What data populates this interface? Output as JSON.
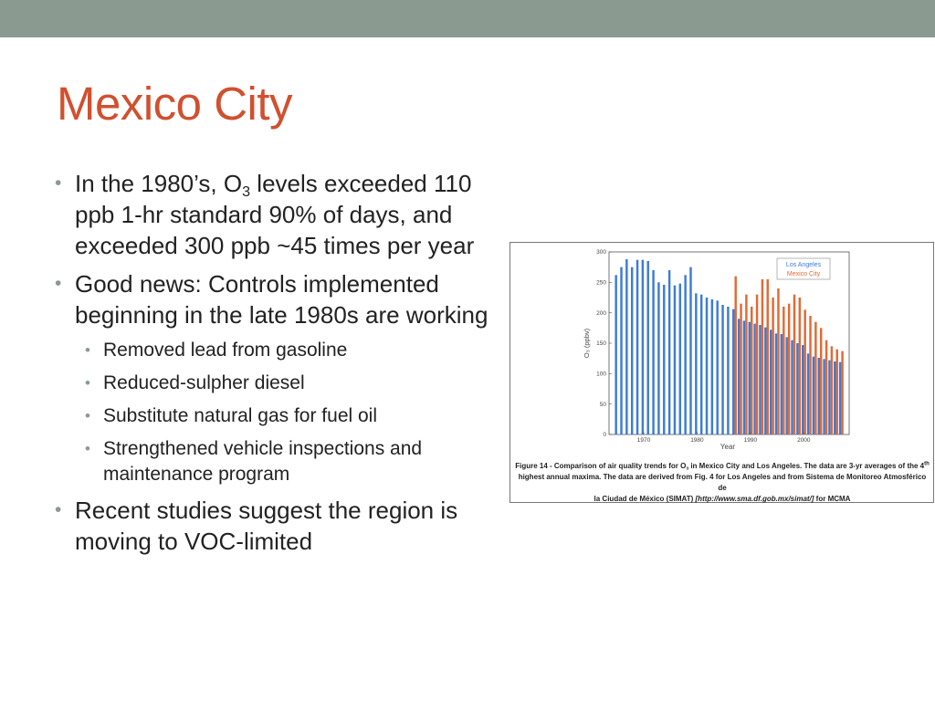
{
  "slide": {
    "title": "Mexico City",
    "bullets": [
      {
        "pre": "In the 1980’s, O",
        "sub": "3",
        "post": " levels exceeded 110 ppb 1-hr standard 90% of days, and exceeded 300 ppb ~45 times per year"
      },
      {
        "text": "Good news: Controls implemented beginning in the late 1980s are working"
      },
      {
        "text": "Removed lead from gasoline"
      },
      {
        "text": "Reduced-sulpher diesel"
      },
      {
        "text": "Substitute natural gas for fuel oil"
      },
      {
        "text": "Strengthened vehicle inspections and maintenance program"
      },
      {
        "text": "Recent studies suggest the region is moving to VOC-limited"
      }
    ]
  },
  "figure": {
    "caption": {
      "line1_a": "Figure 14 - Comparison of air quality trends for O",
      "line1_sub": "3",
      "line1_b": " in Mexico City and Los Angeles.  The data are 3-yr averages of the 4",
      "line1_sup": "th",
      "line2": "highest annual maxima.  The data are derived from Fig. 4 for Los Angeles and from Sistema de Monitoreo Atmosférico de",
      "line3_a": "la Ciudad de México (SIMAT) ",
      "line3_url": "[http://www.sma.df.gob.mx/simat/]",
      "line3_b": " for MCMA"
    }
  },
  "chart_data": {
    "type": "bar",
    "xlabel": "Year",
    "ylabel": "O₃ (ppbv)",
    "ylim": [
      0,
      300
    ],
    "yticks": [
      0,
      50,
      100,
      150,
      200,
      250,
      300
    ],
    "xticks": [
      1970,
      1980,
      1990,
      2000
    ],
    "xlim": [
      1963.5,
      2008.5
    ],
    "legend_position": "top-right",
    "colors": {
      "Los Angeles": "#3d7bd6",
      "Mexico City": "#e06a35"
    },
    "series": [
      {
        "name": "Los Angeles",
        "x": [
          1965,
          1966,
          1967,
          1968,
          1969,
          1970,
          1971,
          1972,
          1973,
          1974,
          1975,
          1976,
          1977,
          1978,
          1979,
          1980,
          1981,
          1982,
          1983,
          1984,
          1985,
          1986,
          1987,
          1988,
          1989,
          1990,
          1991,
          1992,
          1993,
          1994,
          1995,
          1996,
          1997,
          1998,
          1999,
          2000,
          2001,
          2002,
          2003,
          2004,
          2005,
          2006,
          2007
        ],
        "values": [
          262,
          275,
          288,
          275,
          287,
          287,
          285,
          270,
          250,
          246,
          270,
          245,
          248,
          262,
          275,
          232,
          230,
          225,
          222,
          220,
          213,
          210,
          206,
          190,
          187,
          185,
          182,
          180,
          176,
          172,
          166,
          165,
          160,
          155,
          150,
          147,
          133,
          128,
          126,
          124,
          122,
          120,
          119
        ]
      },
      {
        "name": "Mexico City",
        "x": [
          1987,
          1988,
          1989,
          1990,
          1991,
          1992,
          1993,
          1994,
          1995,
          1996,
          1997,
          1998,
          1999,
          2000,
          2001,
          2002,
          2003,
          2004,
          2005,
          2006,
          2007
        ],
        "values": [
          260,
          215,
          230,
          210,
          230,
          255,
          255,
          225,
          240,
          210,
          215,
          230,
          225,
          205,
          195,
          185,
          175,
          155,
          145,
          140,
          137
        ]
      }
    ]
  }
}
